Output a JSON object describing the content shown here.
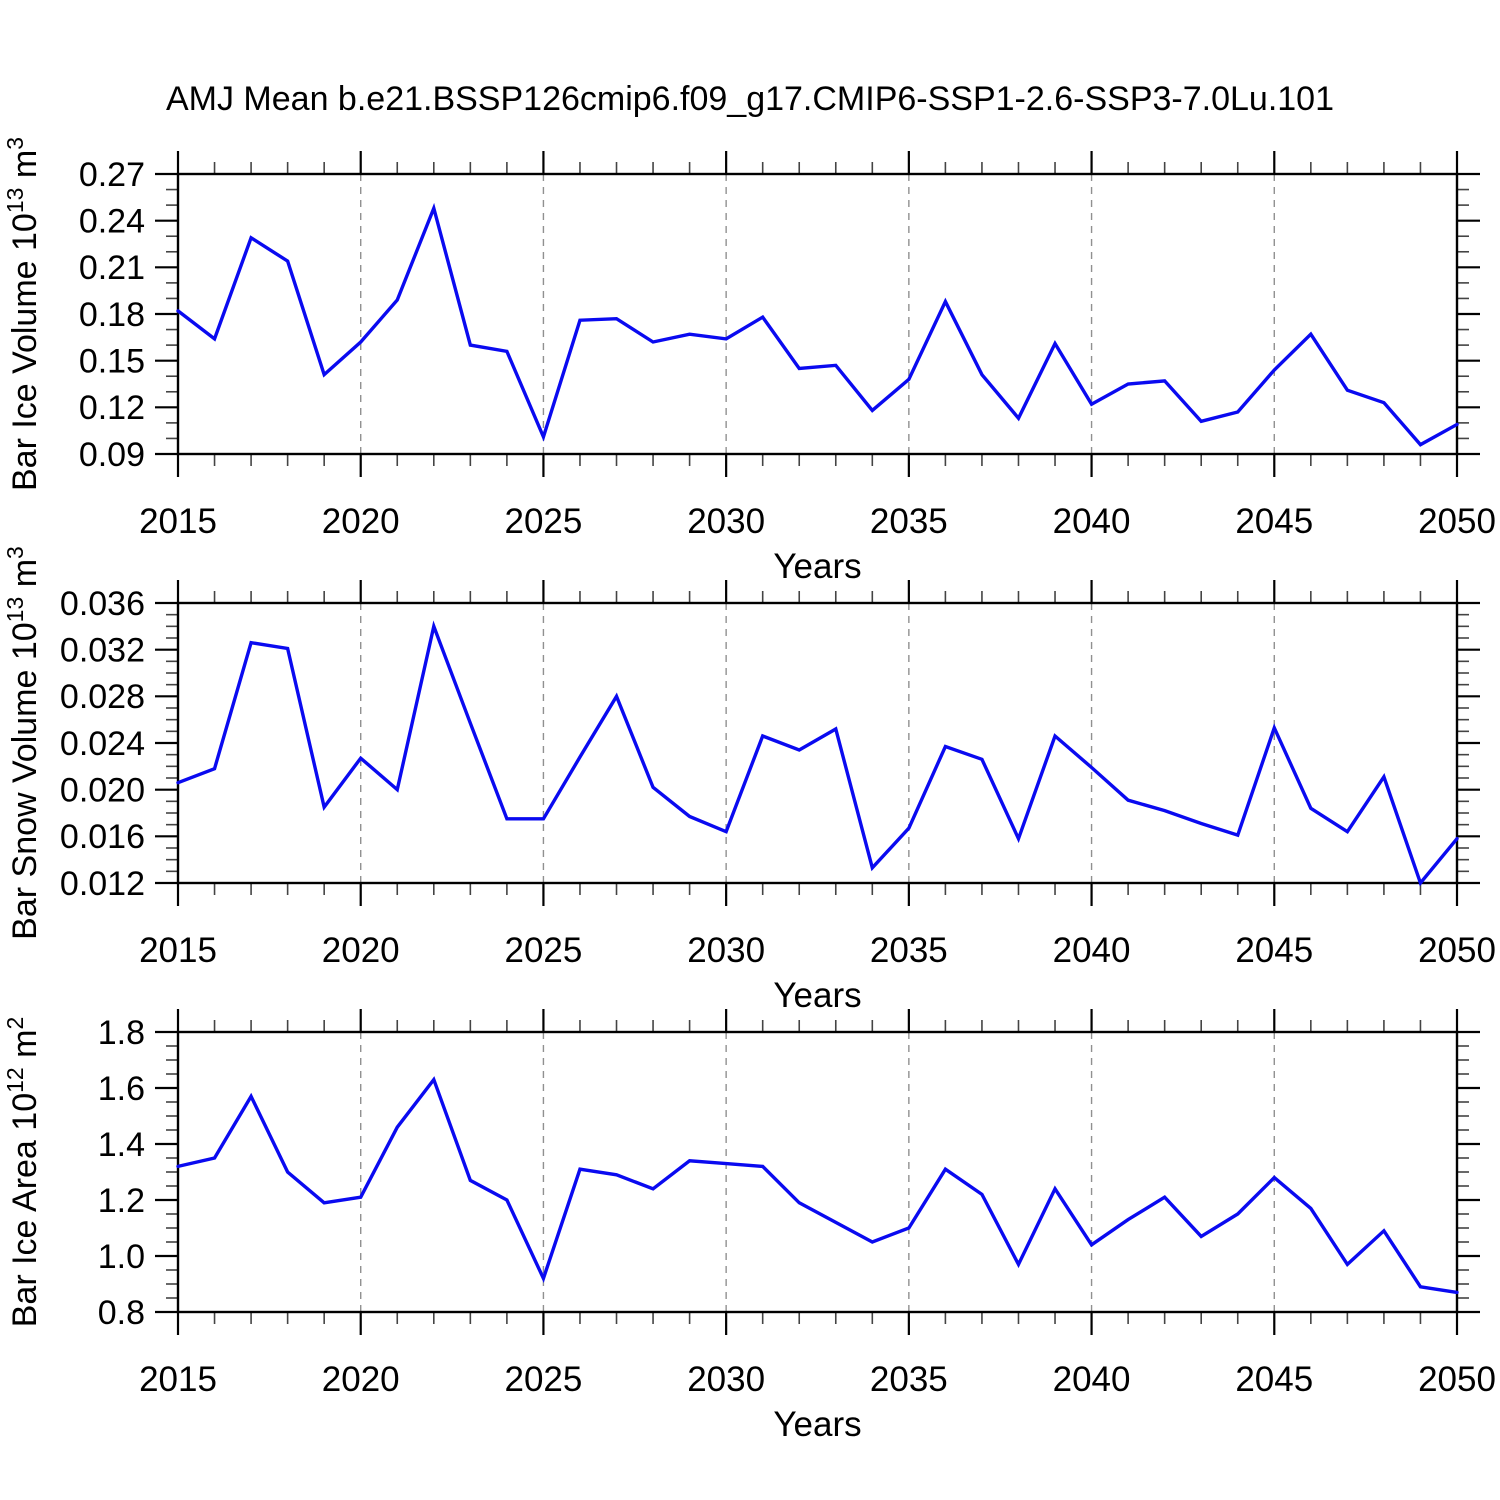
{
  "title": "AMJ Mean b.e21.BSSP126cmip6.f09_g17.CMIP6-SSP1-2.6-SSP3-7.0Lu.101",
  "style": {
    "line_color": "#0a0af0",
    "grid_color": "#909090",
    "axis_color": "#000000",
    "minor_tick_color": "#444444",
    "background": "#ffffff"
  },
  "chart_data": [
    {
      "type": "line",
      "name": "bar-ice-volume",
      "title": "",
      "xlabel": "Years",
      "ylabel_plain": "Bar Ice Volume 10^13 m^3",
      "ylabel_segments": [
        {
          "t": "Bar Ice Volume 10"
        },
        {
          "t": "13",
          "sup": true
        },
        {
          "t": " m"
        },
        {
          "t": "3",
          "sup": true
        }
      ],
      "ylim": [
        0.09,
        0.27
      ],
      "y_major_step": 0.03,
      "y_minor_step": 0.01,
      "y_tick_labels": [
        "0.09",
        "0.12",
        "0.15",
        "0.18",
        "0.21",
        "0.24",
        "0.27"
      ],
      "x_start": 2015,
      "x_end": 2050,
      "x_major_step": 5,
      "x_minor_step": 1,
      "x_tick_labels": [
        "2015",
        "2020",
        "2025",
        "2030",
        "2035",
        "2040",
        "2045",
        "2050"
      ],
      "gridline_years": [
        2020,
        2025,
        2030,
        2035,
        2040,
        2045
      ],
      "grid_on": true,
      "legend": "none",
      "values": [
        0.182,
        0.164,
        0.229,
        0.214,
        0.141,
        0.162,
        0.189,
        0.248,
        0.16,
        0.156,
        0.101,
        0.176,
        0.177,
        0.162,
        0.167,
        0.164,
        0.178,
        0.145,
        0.147,
        0.118,
        0.138,
        0.188,
        0.141,
        0.113,
        0.161,
        0.122,
        0.135,
        0.137,
        0.111,
        0.117,
        0.144,
        0.167,
        0.131,
        0.123,
        0.096,
        0.109
      ]
    },
    {
      "type": "line",
      "name": "bar-snow-volume",
      "title": "",
      "xlabel": "Years",
      "ylabel_plain": "Bar Snow Volume 10^13 m^3",
      "ylabel_segments": [
        {
          "t": "Bar Snow Volume 10"
        },
        {
          "t": "13",
          "sup": true
        },
        {
          "t": " m"
        },
        {
          "t": "3",
          "sup": true
        }
      ],
      "ylim": [
        0.012,
        0.036
      ],
      "y_major_step": 0.004,
      "y_minor_step": 0.001,
      "y_tick_labels": [
        "0.012",
        "0.016",
        "0.020",
        "0.024",
        "0.028",
        "0.032",
        "0.036"
      ],
      "x_start": 2015,
      "x_end": 2050,
      "x_major_step": 5,
      "x_minor_step": 1,
      "x_tick_labels": [
        "2015",
        "2020",
        "2025",
        "2030",
        "2035",
        "2040",
        "2045",
        "2050"
      ],
      "gridline_years": [
        2020,
        2025,
        2030,
        2035,
        2040,
        2045
      ],
      "grid_on": true,
      "legend": "none",
      "values": [
        0.0206,
        0.0218,
        0.0326,
        0.0321,
        0.0185,
        0.0227,
        0.02,
        0.034,
        0.0257,
        0.0175,
        0.0175,
        0.0228,
        0.028,
        0.0202,
        0.0177,
        0.0164,
        0.0246,
        0.0234,
        0.0252,
        0.0133,
        0.0167,
        0.0237,
        0.0226,
        0.0158,
        0.0246,
        0.0219,
        0.0191,
        0.0182,
        0.0171,
        0.0161,
        0.0253,
        0.0184,
        0.0164,
        0.0211,
        0.012,
        0.0158
      ]
    },
    {
      "type": "line",
      "name": "bar-ice-area",
      "title": "",
      "xlabel": "Years",
      "ylabel_plain": "Bar Ice Area 10^12 m^2",
      "ylabel_segments": [
        {
          "t": "Bar Ice Area 10"
        },
        {
          "t": "12",
          "sup": true
        },
        {
          "t": " m"
        },
        {
          "t": "2",
          "sup": true
        }
      ],
      "ylim": [
        0.8,
        1.8
      ],
      "y_major_step": 0.2,
      "y_minor_step": 0.05,
      "y_tick_labels": [
        "0.8",
        "1.0",
        "1.2",
        "1.4",
        "1.6",
        "1.8"
      ],
      "x_start": 2015,
      "x_end": 2050,
      "x_major_step": 5,
      "x_minor_step": 1,
      "x_tick_labels": [
        "2015",
        "2020",
        "2025",
        "2030",
        "2035",
        "2040",
        "2045",
        "2050"
      ],
      "gridline_years": [
        2020,
        2025,
        2030,
        2035,
        2040,
        2045
      ],
      "grid_on": true,
      "legend": "none",
      "values": [
        1.32,
        1.35,
        1.57,
        1.3,
        1.19,
        1.21,
        1.46,
        1.63,
        1.27,
        1.2,
        0.92,
        1.31,
        1.29,
        1.24,
        1.34,
        1.33,
        1.32,
        1.19,
        1.12,
        1.05,
        1.1,
        1.31,
        1.22,
        0.97,
        1.24,
        1.04,
        1.13,
        1.21,
        1.07,
        1.15,
        1.28,
        1.17,
        0.97,
        1.09,
        0.89,
        0.87
      ]
    }
  ]
}
